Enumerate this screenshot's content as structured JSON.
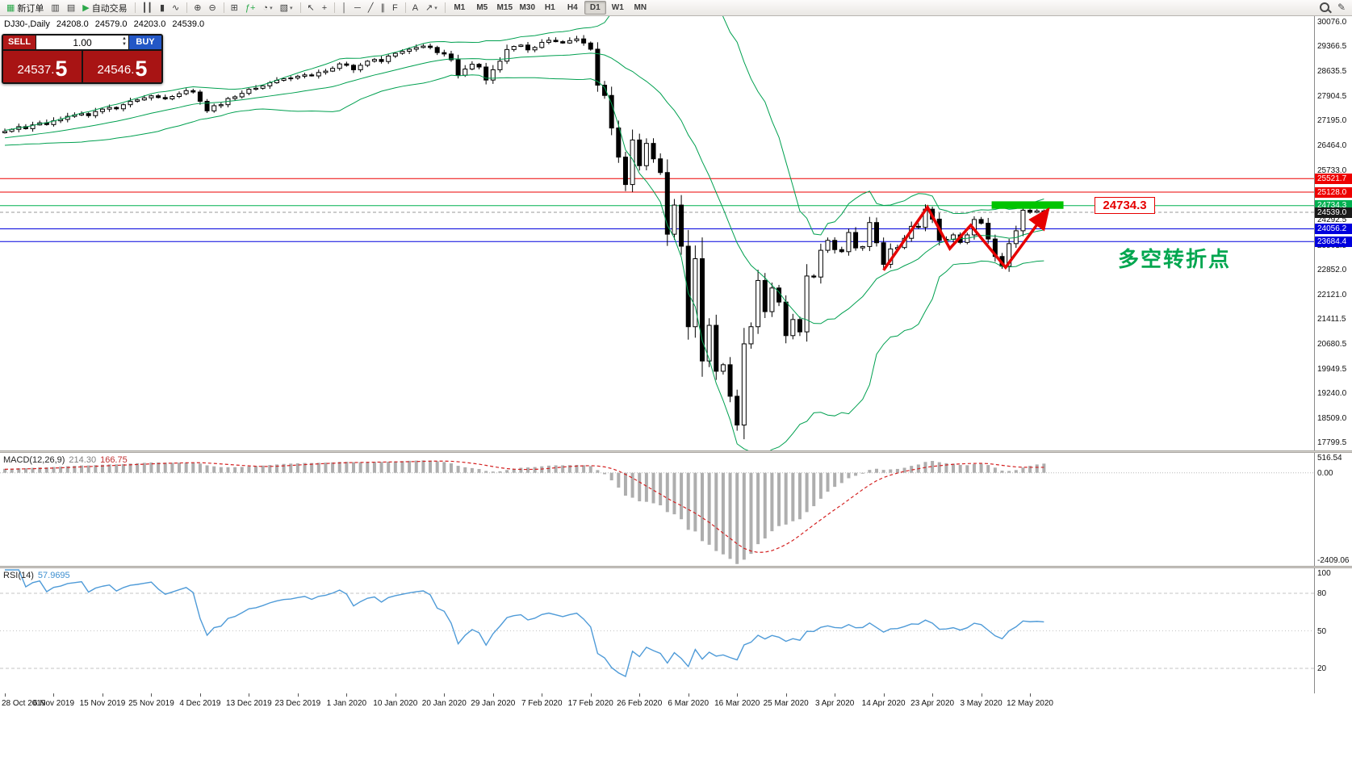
{
  "toolbar": {
    "items": [
      {
        "name": "new-order-button",
        "glyph": "▦",
        "label": "新订单",
        "glyph_color": "#2ba84a"
      },
      {
        "name": "charts-button",
        "glyph": "▥"
      },
      {
        "name": "profiles-button",
        "glyph": "▤"
      },
      {
        "name": "autotrading-button",
        "glyph": "▶",
        "label": "自动交易",
        "glyph_color": "#2ba84a"
      },
      {
        "sep": true
      },
      {
        "name": "bar-chart-button",
        "glyph": "┃┃"
      },
      {
        "name": "candlestick-chart-button",
        "glyph": "▮"
      },
      {
        "name": "line-chart-button",
        "glyph": "∿"
      },
      {
        "sep": true
      },
      {
        "name": "zoom-in-button",
        "glyph": "⊕"
      },
      {
        "name": "zoom-out-button",
        "glyph": "⊖"
      },
      {
        "sep": true
      },
      {
        "name": "tile-windows-button",
        "glyph": "⊞"
      },
      {
        "name": "indicators-button",
        "glyph": "ƒ+",
        "glyph_color": "#2ba84a"
      },
      {
        "name": "periods-button",
        "glyph": "◔",
        "caret": true
      },
      {
        "name": "templates-button",
        "glyph": "▧",
        "caret": true
      },
      {
        "sep": true
      },
      {
        "name": "cursor-button",
        "glyph": "↖"
      },
      {
        "name": "crosshair-button",
        "glyph": "+"
      },
      {
        "sep": true
      },
      {
        "name": "vertical-line-button",
        "glyph": "│"
      },
      {
        "name": "horizontal-line-button",
        "glyph": "─"
      },
      {
        "name": "trendline-button",
        "glyph": "╱"
      },
      {
        "name": "channel-button",
        "glyph": "∥"
      },
      {
        "name": "fibonacci-button",
        "glyph": "F"
      },
      {
        "sep": true
      },
      {
        "name": "text-button",
        "glyph": "A"
      },
      {
        "name": "arrow-tools-button",
        "glyph": "↗",
        "caret": true
      },
      {
        "sep": true
      }
    ],
    "timeframes": [
      "M1",
      "M5",
      "M15",
      "M30",
      "H1",
      "H4",
      "D1",
      "W1",
      "MN"
    ],
    "active_timeframe": "D1"
  },
  "trade_panel": {
    "sell_label": "SELL",
    "buy_label": "BUY",
    "volume": "1.00",
    "sell_price_main": "24537.",
    "sell_price_big": "5",
    "buy_price_main": "24546.",
    "buy_price_big": "5"
  },
  "chart_header": {
    "symbol_period": "DJ30-,Daily",
    "open": "24208.0",
    "high": "24579.0",
    "low": "24203.0",
    "close": "24539.0"
  },
  "macd": {
    "label": "MACD(12,26,9)",
    "main_value": "214.30",
    "signal_value": "166.75",
    "scale": [
      "516.54",
      "0.00",
      "-2409.06"
    ]
  },
  "rsi": {
    "label": "RSI(14)",
    "value": "57.9695",
    "scale": [
      "100",
      "80",
      "50",
      "20"
    ]
  },
  "annotations": {
    "level_callout": {
      "text": "24734.3",
      "bar": 156.3,
      "price": 24734.3,
      "color": "#e60000"
    },
    "note": {
      "text": "多空转折点",
      "bar": 159.6,
      "price": 23650,
      "color": "#00a64f"
    }
  },
  "chart_data": {
    "type": "candlestick",
    "title": "DJ30-,Daily",
    "symbol": "DJ30",
    "timeframe": "Daily",
    "grid": false,
    "bars_per_label": 7,
    "x_labels": [
      "28 Oct 2019",
      "6 Nov 2019",
      "15 Nov 2019",
      "25 Nov 2019",
      "4 Dec 2019",
      "13 Dec 2019",
      "23 Dec 2019",
      "1 Jan 2020",
      "10 Jan 2020",
      "20 Jan 2020",
      "29 Jan 2020",
      "7 Feb 2020",
      "17 Feb 2020",
      "26 Feb 2020",
      "6 Mar 2020",
      "16 Mar 2020",
      "25 Mar 2020",
      "3 Apr 2020",
      "14 Apr 2020",
      "23 Apr 2020",
      "3 May 2020",
      "12 May 2020"
    ],
    "y_axis_labels": [
      "30076.0",
      "29366.5",
      "28635.5",
      "27904.5",
      "27195.0",
      "26464.0",
      "25733.0",
      "25002.5",
      "24292.5",
      "23561.5",
      "22852.0",
      "22121.0",
      "21411.5",
      "20680.5",
      "19949.5",
      "19240.0",
      "18509.0",
      "17799.5"
    ],
    "y_range_approx": [
      17589,
      30264
    ],
    "closes": [
      26900,
      26960,
      27040,
      26980,
      27090,
      27150,
      27100,
      27210,
      27250,
      27340,
      27380,
      27420,
      27360,
      27480,
      27550,
      27600,
      27560,
      27680,
      27780,
      27820,
      27880,
      27940,
      27890,
      27850,
      27920,
      28000,
      28090,
      28050,
      27780,
      27500,
      27650,
      27680,
      27860,
      27910,
      28010,
      28130,
      28160,
      28230,
      28320,
      28390,
      28440,
      28460,
      28510,
      28550,
      28520,
      28620,
      28660,
      28740,
      28870,
      28830,
      28700,
      28830,
      28950,
      29000,
      28940,
      29100,
      29180,
      29240,
      29300,
      29350,
      29390,
      29350,
      29200,
      29160,
      28990,
      28540,
      28720,
      28860,
      28780,
      28400,
      28700,
      28950,
      29290,
      29380,
      29420,
      29280,
      29350,
      29500,
      29560,
      29520,
      29480,
      29550,
      29600,
      29480,
      29300,
      28250,
      27950,
      27000,
      26150,
      25350,
      26650,
      25900,
      26550,
      26100,
      25700,
      23900,
      24750,
      23550,
      21200,
      23185,
      20200,
      21240,
      19900,
      20090,
      19170,
      18330,
      20700,
      21200,
      22550,
      21640,
      22330,
      21920,
      20940,
      21410,
      21050,
      22680,
      22650,
      23430,
      23720,
      23450,
      23390,
      23950,
      23500,
      23540,
      24240,
      23650,
      23020,
      23470,
      23510,
      23780,
      24130,
      24100,
      24630,
      24340,
      23720,
      23750,
      23880,
      23660,
      23880,
      24330,
      24220,
      23760,
      23250,
      22965,
      23625,
      24000,
      24600,
      24540,
      24580,
      24539
    ],
    "overlays": [
      "Bollinger Bands (green)"
    ],
    "hlines": [
      {
        "price": 25521.7,
        "color": "#ee0000"
      },
      {
        "price": 25128.0,
        "color": "#ee0000"
      },
      {
        "price": 24734.3,
        "color": "#00b050"
      },
      {
        "price": 24539.0,
        "color": "#9a9a9a",
        "dashed": true,
        "badge_bg": "#1a1a1a"
      },
      {
        "price": 24056.2,
        "color": "#0000dd"
      },
      {
        "price": 23684.4,
        "color": "#0000dd"
      }
    ],
    "zigzag": [
      [
        126,
        22850
      ],
      [
        132.3,
        24690
      ],
      [
        135.5,
        23480
      ],
      [
        138.5,
        24160
      ],
      [
        143.5,
        22930
      ],
      [
        149.6,
        24620
      ]
    ],
    "highlight_box": {
      "bar_start": 141.5,
      "bar_end": 151.8,
      "price_top": 24860,
      "price_bottom": 24640,
      "color": "#00c400"
    },
    "indicators": [
      {
        "name": "MACD(12,26,9)",
        "values": [
          214.3,
          166.75
        ],
        "scale": [
          516.54,
          0.0,
          -2409.06
        ]
      },
      {
        "name": "RSI(14)",
        "value": 57.9695,
        "levels": [
          80,
          50,
          20
        ]
      }
    ]
  }
}
